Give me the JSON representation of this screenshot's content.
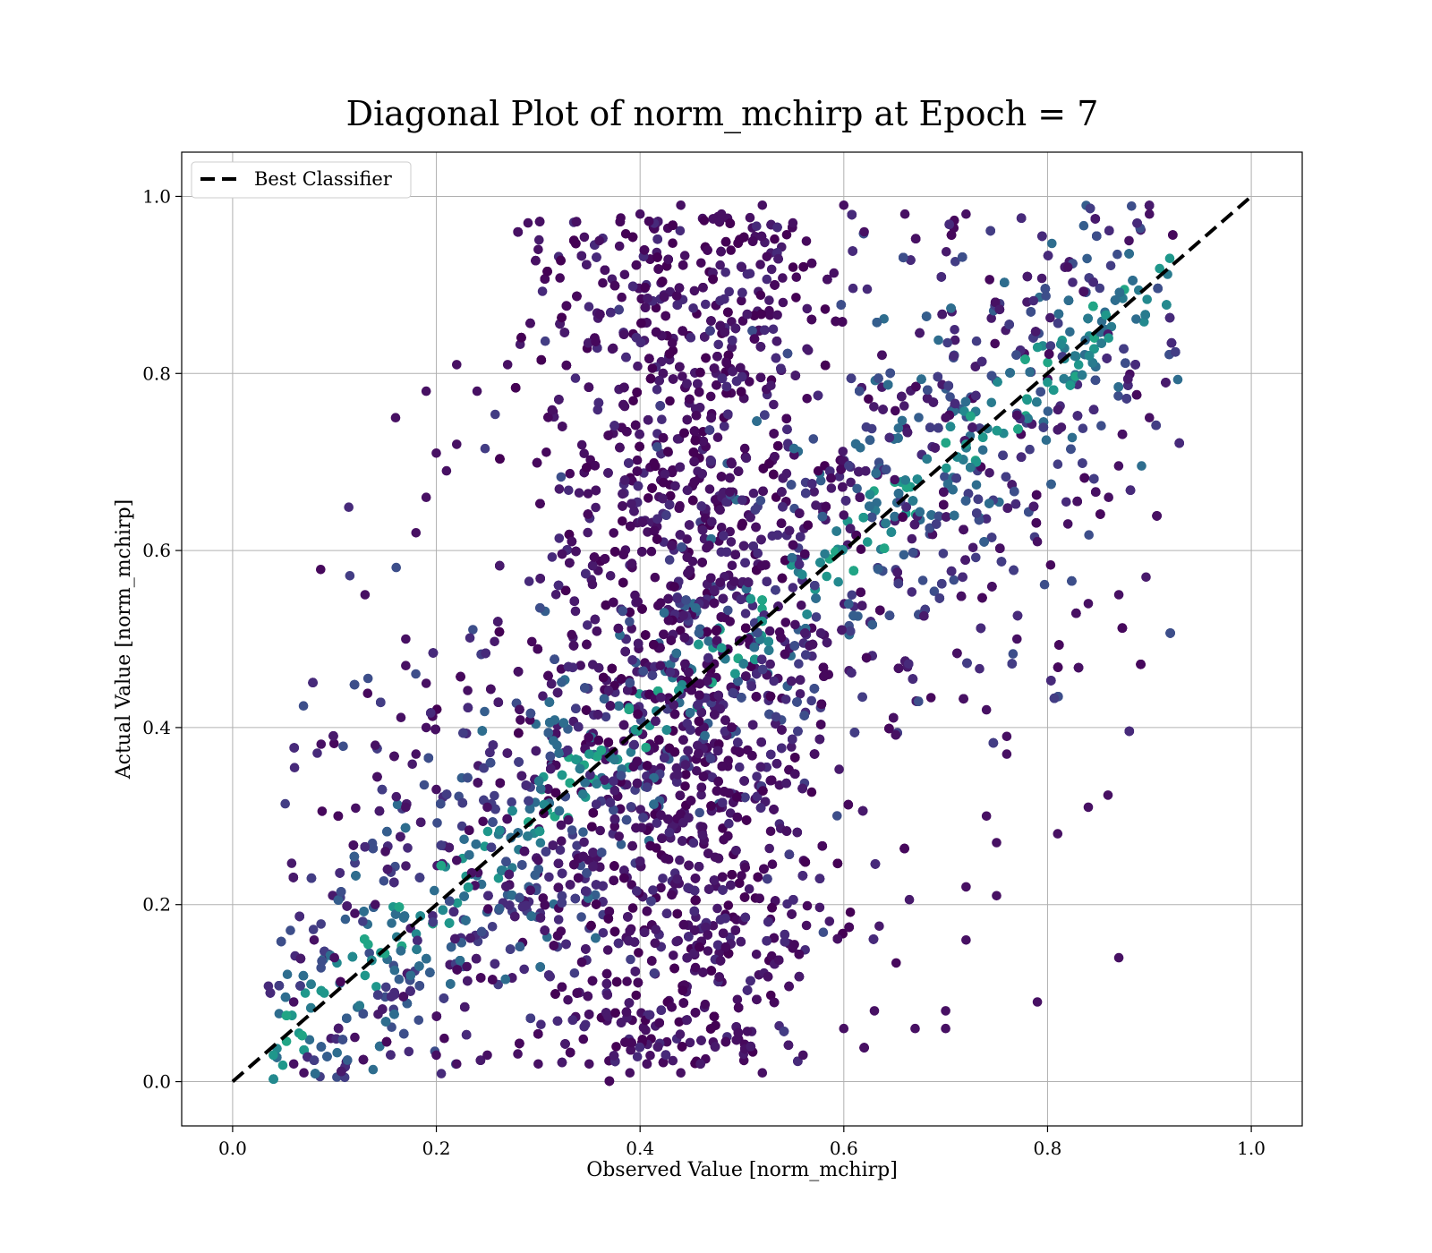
{
  "chart_data": {
    "type": "scatter",
    "title": "Diagonal Plot of norm_mchirp at Epoch = 7",
    "xlabel": "Observed Value [norm_mchirp]",
    "ylabel": "Actual Value [norm_mchirp]",
    "xlim": [
      -0.05,
      1.05
    ],
    "ylim": [
      -0.05,
      1.05
    ],
    "xticks": [
      0.0,
      0.2,
      0.4,
      0.6,
      0.8,
      1.0
    ],
    "yticks": [
      0.0,
      0.2,
      0.4,
      0.6,
      0.8,
      1.0
    ],
    "xtick_labels": [
      "0.0",
      "0.2",
      "0.4",
      "0.6",
      "0.8",
      "1.0"
    ],
    "ytick_labels": [
      "0.0",
      "0.2",
      "0.4",
      "0.6",
      "0.8",
      "1.0"
    ],
    "grid": true,
    "legend": {
      "placement": "upper-left",
      "entries": [
        "Best Classifier"
      ]
    },
    "colormap": "viridis",
    "reference_line": {
      "name": "Best Classifier",
      "style": "dashed",
      "color": "#000000",
      "x": [
        0.0,
        1.0
      ],
      "y": [
        0.0,
        1.0
      ]
    },
    "series": [
      {
        "points": [
          [
            0.04,
            0.03
          ],
          [
            0.06,
            0.02
          ],
          [
            0.07,
            0.01
          ],
          [
            0.06,
            0.09
          ],
          [
            0.08,
            0.16
          ],
          [
            0.09,
            0.1
          ],
          [
            0.1,
            0.14
          ],
          [
            0.12,
            0.19
          ],
          [
            0.12,
            0.05
          ],
          [
            0.13,
            0.12
          ],
          [
            0.14,
            0.2
          ],
          [
            0.15,
            0.26
          ],
          [
            0.16,
            0.75
          ],
          [
            0.14,
            0.38
          ],
          [
            0.13,
            0.55
          ],
          [
            0.17,
            0.5
          ],
          [
            0.17,
            0.47
          ],
          [
            0.17,
            0.31
          ],
          [
            0.18,
            0.62
          ],
          [
            0.19,
            0.66
          ],
          [
            0.19,
            0.78
          ],
          [
            0.2,
            0.71
          ],
          [
            0.21,
            0.69
          ],
          [
            0.22,
            0.72
          ],
          [
            0.22,
            0.81
          ],
          [
            0.24,
            0.78
          ],
          [
            0.27,
            0.81
          ],
          [
            0.28,
            0.96
          ],
          [
            0.29,
            0.97
          ],
          [
            0.3,
            0.94
          ],
          [
            0.18,
            0.37
          ],
          [
            0.19,
            0.4
          ],
          [
            0.19,
            0.45
          ],
          [
            0.2,
            0.33
          ],
          [
            0.23,
            0.13
          ],
          [
            0.2,
            0.03
          ],
          [
            0.22,
            0.02
          ],
          [
            0.25,
            0.03
          ],
          [
            0.3,
            0.25
          ],
          [
            0.22,
            0.25
          ],
          [
            0.25,
            0.31
          ],
          [
            0.35,
            0.37
          ],
          [
            0.42,
            0.47
          ],
          [
            0.48,
            0.49
          ],
          [
            0.52,
            0.52
          ],
          [
            0.6,
            0.64
          ],
          [
            0.65,
            0.68
          ],
          [
            0.7,
            0.75
          ],
          [
            0.72,
            0.72
          ],
          [
            0.78,
            0.77
          ],
          [
            0.8,
            0.79
          ],
          [
            0.82,
            0.92
          ],
          [
            0.86,
            0.84
          ],
          [
            0.88,
            0.95
          ],
          [
            0.9,
            0.98
          ],
          [
            0.92,
            0.93
          ],
          [
            0.9,
            0.75
          ],
          [
            0.86,
            0.66
          ],
          [
            0.82,
            0.63
          ],
          [
            0.79,
            0.61
          ],
          [
            0.84,
            0.54
          ],
          [
            0.87,
            0.55
          ],
          [
            0.77,
            0.5
          ],
          [
            0.74,
            0.42
          ],
          [
            0.76,
            0.37
          ],
          [
            0.76,
            0.39
          ],
          [
            0.75,
            0.27
          ],
          [
            0.74,
            0.3
          ],
          [
            0.72,
            0.22
          ],
          [
            0.75,
            0.21
          ],
          [
            0.72,
            0.16
          ],
          [
            0.84,
            0.31
          ],
          [
            0.81,
            0.28
          ],
          [
            0.87,
            0.14
          ],
          [
            0.79,
            0.09
          ],
          [
            0.7,
            0.06
          ],
          [
            0.7,
            0.08
          ],
          [
            0.67,
            0.06
          ],
          [
            0.63,
            0.08
          ],
          [
            0.6,
            0.06
          ],
          [
            0.56,
            0.03
          ],
          [
            0.52,
            0.01
          ],
          [
            0.44,
            0.01
          ],
          [
            0.39,
            0.01
          ],
          [
            0.35,
            0.02
          ],
          [
            0.3,
            0.02
          ],
          [
            0.48,
            0.98
          ],
          [
            0.44,
            0.99
          ],
          [
            0.4,
            0.98
          ],
          [
            0.52,
            0.99
          ],
          [
            0.55,
            0.97
          ],
          [
            0.6,
            0.99
          ],
          [
            0.66,
            0.98
          ],
          [
            0.72,
            0.98
          ],
          [
            0.62,
            0.96
          ],
          [
            0.36,
            0.95
          ]
        ]
      }
    ]
  }
}
